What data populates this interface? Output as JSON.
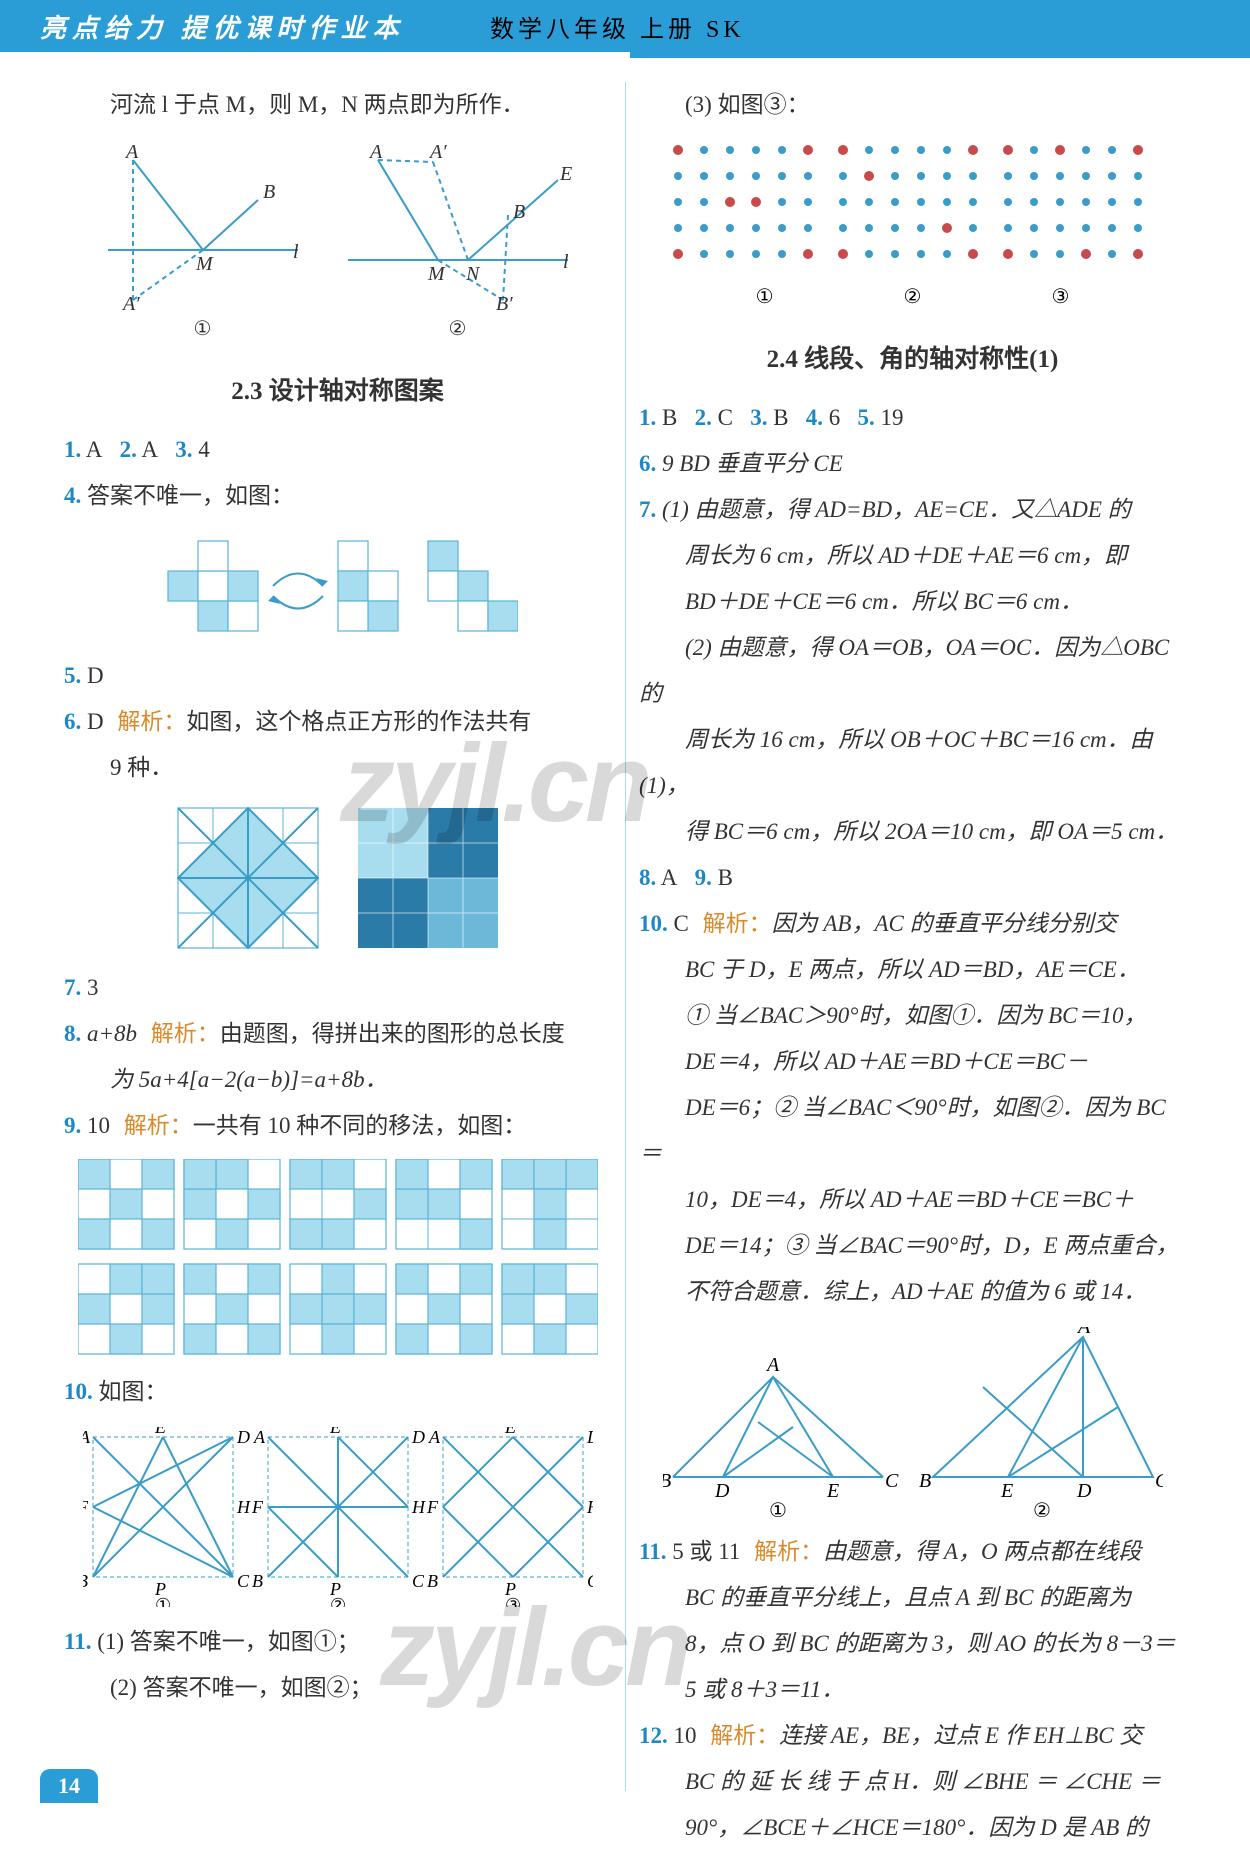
{
  "header": {
    "left_title": "亮点给力  提优课时作业本",
    "right_title": "数学八年级  上册  SK"
  },
  "page_number": "14",
  "left_column": {
    "intro_line": "河流 l 于点 M，则 M，N 两点即为所作．",
    "fig_labels": {
      "one": "①",
      "two": "②"
    },
    "section_title": "2.3  设计轴对称图案",
    "q1": {
      "num": "1.",
      "val": "A"
    },
    "q2": {
      "num": "2.",
      "val": "A"
    },
    "q3": {
      "num": "3.",
      "val": "4"
    },
    "q4": {
      "num": "4.",
      "text": "答案不唯一，如图："
    },
    "q5": {
      "num": "5.",
      "val": "D"
    },
    "q6": {
      "num": "6.",
      "val": "D",
      "analysis_label": "解析：",
      "text": "如图，这个格点正方形的作法共有",
      "text2": "9 种．"
    },
    "q7": {
      "num": "7.",
      "val": "3"
    },
    "q8": {
      "num": "8.",
      "val": "a+8b",
      "analysis_label": "解析：",
      "text": "由题图，得拼出来的图形的总长度",
      "text2": "为 5a+4[a−2(a−b)]=a+8b．"
    },
    "q9": {
      "num": "9.",
      "val": "10",
      "analysis_label": "解析：",
      "text": "一共有 10 种不同的移法，如图："
    },
    "q10": {
      "num": "10.",
      "text": "如图："
    },
    "q10_labels": {
      "one": "①",
      "two": "②",
      "three": "③"
    },
    "q11": {
      "num": "11.",
      "p1": "(1) 答案不唯一，如图①；",
      "p2": "(2) 答案不唯一，如图②；"
    }
  },
  "right_column": {
    "q3_label": "(3) 如图③：",
    "dot_labels": {
      "one": "①",
      "two": "②",
      "three": "③"
    },
    "section_title": "2.4  线段、角的轴对称性(1)",
    "row1": {
      "q1n": "1.",
      "q1v": "B",
      "q2n": "2.",
      "q2v": "C",
      "q3n": "3.",
      "q3v": "B",
      "q4n": "4.",
      "q4v": "6",
      "q5n": "5.",
      "q5v": "19"
    },
    "q6": {
      "num": "6.",
      "val": "9  BD 垂直平分 CE"
    },
    "q7": {
      "num": "7.",
      "l1": "(1) 由题意，得 AD=BD，AE=CE．又△ADE 的",
      "l2": "周长为 6 cm，所以 AD＋DE＋AE＝6 cm，即",
      "l3": "BD＋DE＋CE＝6 cm．所以 BC＝6 cm．",
      "l4": "(2) 由题意，得 OA＝OB，OA＝OC．因为△OBC 的",
      "l5": "周长为 16 cm，所以 OB＋OC＋BC＝16 cm．由(1)，",
      "l6": "得 BC＝6 cm，所以 2OA＝10 cm，即 OA＝5 cm．"
    },
    "q8": {
      "num": "8.",
      "val": "A"
    },
    "q9": {
      "num": "9.",
      "val": "B"
    },
    "q10": {
      "num": "10.",
      "val": "C",
      "analysis_label": "解析：",
      "l1": "因为 AB，AC 的垂直平分线分别交",
      "l2": "BC 于 D，E 两点，所以 AD＝BD，AE＝CE．",
      "l3": "① 当∠BAC＞90°时，如图①．因为 BC＝10，",
      "l4": "DE＝4，所以 AD＋AE＝BD＋CE＝BC－",
      "l5": "DE＝6；② 当∠BAC＜90°时，如图②．因为 BC＝",
      "l6": "10，DE＝4，所以 AD＋AE＝BD＋CE＝BC＋",
      "l7": "DE＝14；③ 当∠BAC＝90°时，D，E 两点重合，",
      "l8": "不符合题意．综上，AD＋AE 的值为 6 或 14．"
    },
    "fig_labels": {
      "one": "①",
      "two": "②"
    },
    "q11": {
      "num": "11.",
      "val": "5 或 11",
      "analysis_label": "解析：",
      "l1": "由题意，得 A，O 两点都在线段",
      "l2": "BC 的垂直平分线上，且点 A 到 BC 的距离为",
      "l3": "8，点 O 到 BC 的距离为 3，则 AO 的长为 8－3＝",
      "l4": "5 或 8＋3＝11．"
    },
    "q12": {
      "num": "12.",
      "val": "10",
      "analysis_label": "解析：",
      "l1": "连接 AE，BE，过点 E 作 EH⊥BC 交",
      "l2": "BC 的 延 长 线 于 点 H．则 ∠BHE ＝ ∠CHE ＝",
      "l3": "90°，∠BCE＋∠HCE＝180°．因为 D 是 AB 的"
    }
  },
  "colors": {
    "blue": "#2a9dd6",
    "lightblue": "#a8ddef",
    "num_blue": "#1e88c7",
    "orange": "#d98a2a",
    "text": "#333333",
    "dot_blue": "#3a9cc8",
    "dot_red": "#c84a4a"
  },
  "geom_fig1": {
    "labels": {
      "A": "A",
      "B": "B",
      "Ap": "A′",
      "M": "M",
      "l": "l"
    }
  },
  "geom_fig2": {
    "labels": {
      "A": "A",
      "Ap": "A′",
      "B": "B",
      "Bp": "B′",
      "E": "E",
      "M": "M",
      "N": "N",
      "l": "l"
    }
  },
  "tri_fig": {
    "labels": {
      "A": "A",
      "B": "B",
      "C": "C",
      "D": "D",
      "E": "E"
    }
  },
  "sq_fig": {
    "labels": {
      "A": "A",
      "B": "B",
      "C": "C",
      "D": "D",
      "E": "E",
      "F": "F",
      "H": "H",
      "P": "P"
    }
  }
}
